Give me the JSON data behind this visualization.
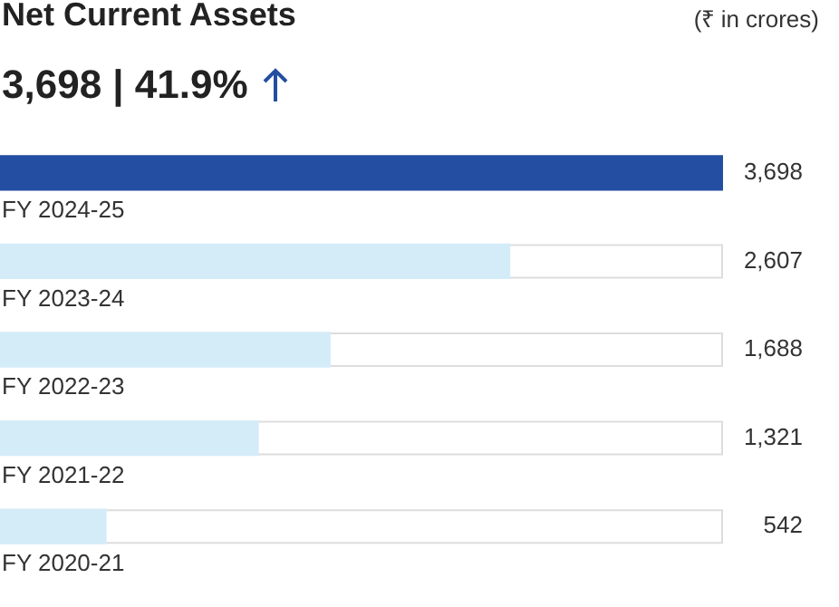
{
  "chart_data": {
    "type": "bar",
    "orientation": "horizontal",
    "title": "Net Current Assets",
    "subtitle": "3,698 | 41.9%",
    "annotations": [
      "(₹ in crores)"
    ],
    "categories": [
      "FY 2024-25",
      "FY 2023-24",
      "FY 2022-23",
      "FY 2021-22",
      "FY 2020-21"
    ],
    "values": [
      3698,
      2607,
      1688,
      1321,
      542
    ],
    "colors": [
      "#234ea1",
      "#d4ecf8",
      "#d4ecf8",
      "#d4ecf8",
      "#d4ecf8"
    ],
    "value_labels": [
      "3,698",
      "2,607",
      "1,688",
      "1,321",
      "542"
    ]
  }
}
